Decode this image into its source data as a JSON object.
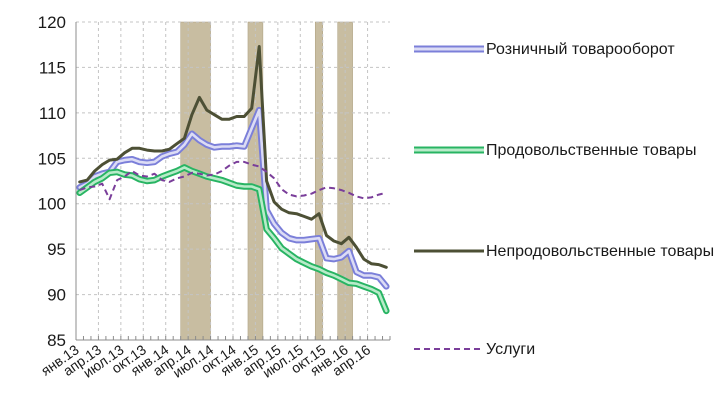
{
  "chart_data": {
    "type": "line",
    "title": "",
    "xlabel": "",
    "ylabel": "",
    "ylim": [
      85,
      120
    ],
    "yticks": [
      85,
      90,
      95,
      100,
      105,
      110,
      115,
      120
    ],
    "grid": true,
    "legend_position": "right",
    "x_tick_labels": [
      "янв.13",
      "апр.13",
      "июл.13",
      "окт.13",
      "янв.14",
      "апр.14",
      "июл.14",
      "окт.14",
      "янв.15",
      "апр.15",
      "июл.15",
      "окт.15",
      "янв.16",
      "апр.16"
    ],
    "x_tick_months": [
      0,
      3,
      6,
      9,
      12,
      15,
      18,
      21,
      24,
      27,
      30,
      33,
      36,
      39
    ],
    "n_months": 42,
    "shaded_periods": [
      [
        14,
        17
      ],
      [
        23,
        24
      ],
      [
        32,
        32
      ],
      [
        35,
        36
      ]
    ],
    "series": [
      {
        "name": "Розничный товарооборот",
        "style": "double",
        "color": "#7b7fd9",
        "fill": "#dcdcf5",
        "values": [
          101.8,
          102.2,
          103.0,
          103.3,
          103.5,
          104.6,
          104.8,
          104.9,
          104.6,
          104.5,
          104.6,
          105.2,
          105.5,
          105.7,
          106.5,
          107.7,
          107.0,
          106.5,
          106.2,
          106.3,
          106.3,
          106.4,
          106.3,
          108.3,
          110.3,
          99.3,
          97.8,
          96.8,
          96.2,
          96.0,
          96.0,
          96.1,
          96.2,
          94.0,
          93.9,
          94.1,
          94.8,
          92.5,
          92.1,
          92.1,
          91.9,
          90.9
        ]
      },
      {
        "name": "Продовольственные товары",
        "style": "double",
        "color": "#28b463",
        "fill": "#b8ebc9",
        "values": [
          101.2,
          101.8,
          102.4,
          102.8,
          103.4,
          103.5,
          103.2,
          103.1,
          102.7,
          102.5,
          102.6,
          103.0,
          103.3,
          103.6,
          104.0,
          103.6,
          103.3,
          103.0,
          102.8,
          102.6,
          102.3,
          102.0,
          101.9,
          101.9,
          101.6,
          97.2,
          96.2,
          95.1,
          94.5,
          93.9,
          93.5,
          93.1,
          92.8,
          92.4,
          92.1,
          91.7,
          91.3,
          91.2,
          90.9,
          90.6,
          90.2,
          88.2
        ]
      },
      {
        "name": "Непродовольственные товары",
        "style": "solid",
        "color": "#4d5035",
        "width": 3,
        "values": [
          102.4,
          102.6,
          103.6,
          104.3,
          104.8,
          104.9,
          105.6,
          106.1,
          106.1,
          105.9,
          105.8,
          105.8,
          106.0,
          106.6,
          107.2,
          109.8,
          111.7,
          110.3,
          109.8,
          109.3,
          109.3,
          109.6,
          109.6,
          110.5,
          117.3,
          102.5,
          100.2,
          99.4,
          99.0,
          98.9,
          98.6,
          98.3,
          98.9,
          96.5,
          95.9,
          95.6,
          96.3,
          95.2,
          93.9,
          93.4,
          93.3,
          93.0
        ]
      },
      {
        "name": "Услуги",
        "style": "dashed",
        "color": "#7a3e9a",
        "width": 2,
        "values": [
          101.5,
          101.8,
          101.9,
          102.2,
          100.5,
          102.6,
          103.0,
          103.6,
          103.1,
          103.0,
          103.3,
          102.6,
          102.4,
          102.8,
          103.0,
          103.4,
          103.3,
          103.1,
          103.2,
          103.6,
          104.2,
          104.6,
          104.6,
          104.3,
          104.1,
          103.5,
          102.8,
          101.6,
          101.0,
          100.8,
          100.9,
          101.1,
          101.5,
          101.8,
          101.7,
          101.5,
          101.2,
          100.8,
          100.6,
          100.7,
          101.0,
          101.2
        ]
      }
    ]
  }
}
